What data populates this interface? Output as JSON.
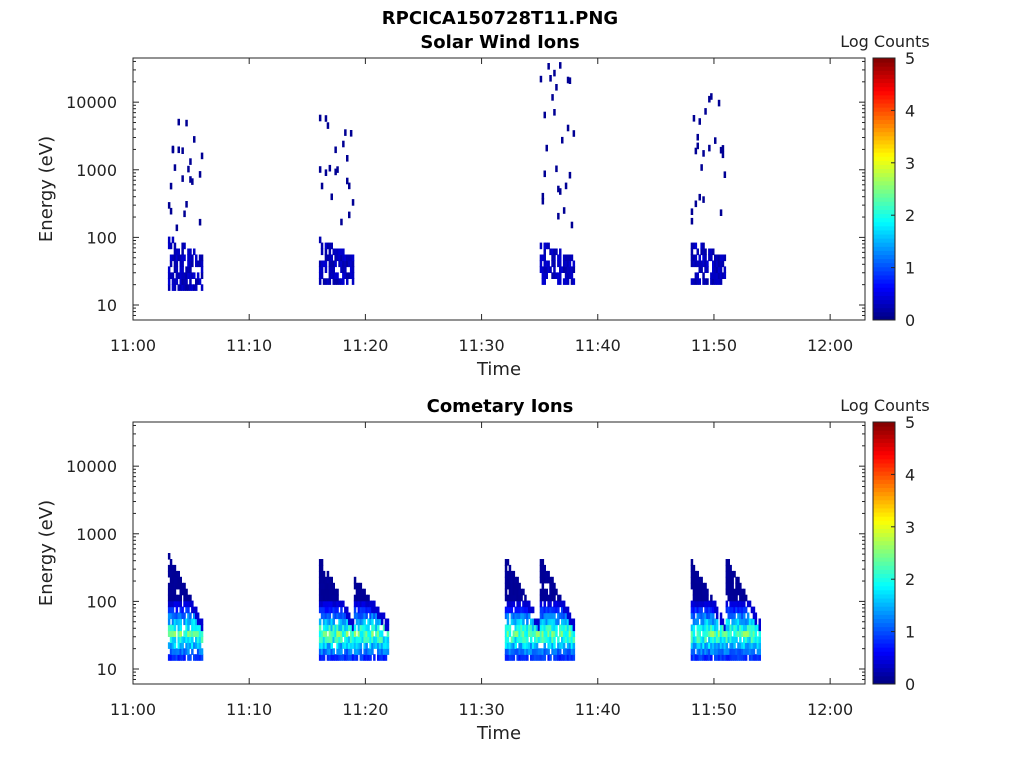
{
  "figure": {
    "title": "RPCICA150728T11.PNG"
  },
  "chart_data": [
    {
      "type": "heatmap",
      "title": "Solar Wind Ions",
      "xlabel": "Time",
      "ylabel": "Energy (eV)",
      "x_ticks": [
        "11:00",
        "11:10",
        "11:20",
        "11:30",
        "11:40",
        "11:50",
        "12:00"
      ],
      "xlim": [
        "11:00",
        "12:03"
      ],
      "y_ticks": [
        10,
        100,
        1000,
        10000
      ],
      "y_tick_labels": [
        "10",
        "100",
        "1000",
        "10000"
      ],
      "ylim": [
        6,
        45000
      ],
      "yscale": "log",
      "colorbar": {
        "label": "Log Counts",
        "range": [
          0,
          5
        ],
        "ticks": [
          "0",
          "1",
          "2",
          "3",
          "4",
          "5"
        ],
        "colormap": "jet"
      },
      "bursts": [
        {
          "start": "11:03",
          "end": "11:06",
          "core_energy_range": [
            15,
            90
          ],
          "core_log_counts": 0.3,
          "scatter_energy_range": [
            120,
            6000
          ],
          "scatter_log_counts": 0.1
        },
        {
          "start": "11:16",
          "end": "11:19",
          "core_energy_range": [
            17,
            85
          ],
          "core_log_counts": 0.3,
          "scatter_energy_range": [
            150,
            7000
          ],
          "scatter_log_counts": 0.1
        },
        {
          "start": "11:35",
          "end": "11:38",
          "core_energy_range": [
            17,
            80
          ],
          "core_log_counts": 0.3,
          "scatter_energy_range": [
            120,
            38000
          ],
          "scatter_log_counts": 0.1
        },
        {
          "start": "11:48",
          "end": "11:51",
          "core_energy_range": [
            17,
            85
          ],
          "core_log_counts": 0.3,
          "scatter_energy_range": [
            150,
            13000
          ],
          "scatter_log_counts": 0.1
        }
      ]
    },
    {
      "type": "heatmap",
      "title": "Cometary Ions",
      "xlabel": "Time",
      "ylabel": "Energy (eV)",
      "x_ticks": [
        "11:00",
        "11:10",
        "11:20",
        "11:30",
        "11:40",
        "11:50",
        "12:00"
      ],
      "xlim": [
        "11:00",
        "12:03"
      ],
      "y_ticks": [
        10,
        100,
        1000,
        10000
      ],
      "y_tick_labels": [
        "10",
        "100",
        "1000",
        "10000"
      ],
      "ylim": [
        6,
        45000
      ],
      "yscale": "log",
      "colorbar": {
        "label": "Log Counts",
        "range": [
          0,
          5
        ],
        "ticks": [
          "0",
          "1",
          "2",
          "3",
          "4",
          "5"
        ],
        "colormap": "jet"
      },
      "bursts": [
        {
          "start": "11:03",
          "end": "11:06",
          "top_energy": 450,
          "bottom_energy": 13,
          "peak_energy": 30,
          "peak_log_counts": 2.4
        },
        {
          "start": "11:16",
          "end": "11:19",
          "top_energy": 400,
          "bottom_energy": 13,
          "peak_energy": 30,
          "peak_log_counts": 2.4
        },
        {
          "start": "11:19",
          "end": "11:22",
          "top_energy": 200,
          "bottom_energy": 13,
          "peak_energy": 30,
          "peak_log_counts": 2.4
        },
        {
          "start": "11:32",
          "end": "11:35",
          "top_energy": 400,
          "bottom_energy": 13,
          "peak_energy": 30,
          "peak_log_counts": 2.4
        },
        {
          "start": "11:35",
          "end": "11:38",
          "top_energy": 400,
          "bottom_energy": 13,
          "peak_energy": 30,
          "peak_log_counts": 2.4
        },
        {
          "start": "11:48",
          "end": "11:51",
          "top_energy": 350,
          "bottom_energy": 13,
          "peak_energy": 30,
          "peak_log_counts": 2.4
        },
        {
          "start": "11:51",
          "end": "11:54",
          "top_energy": 400,
          "bottom_energy": 13,
          "peak_energy": 30,
          "peak_log_counts": 2.4
        }
      ]
    }
  ]
}
